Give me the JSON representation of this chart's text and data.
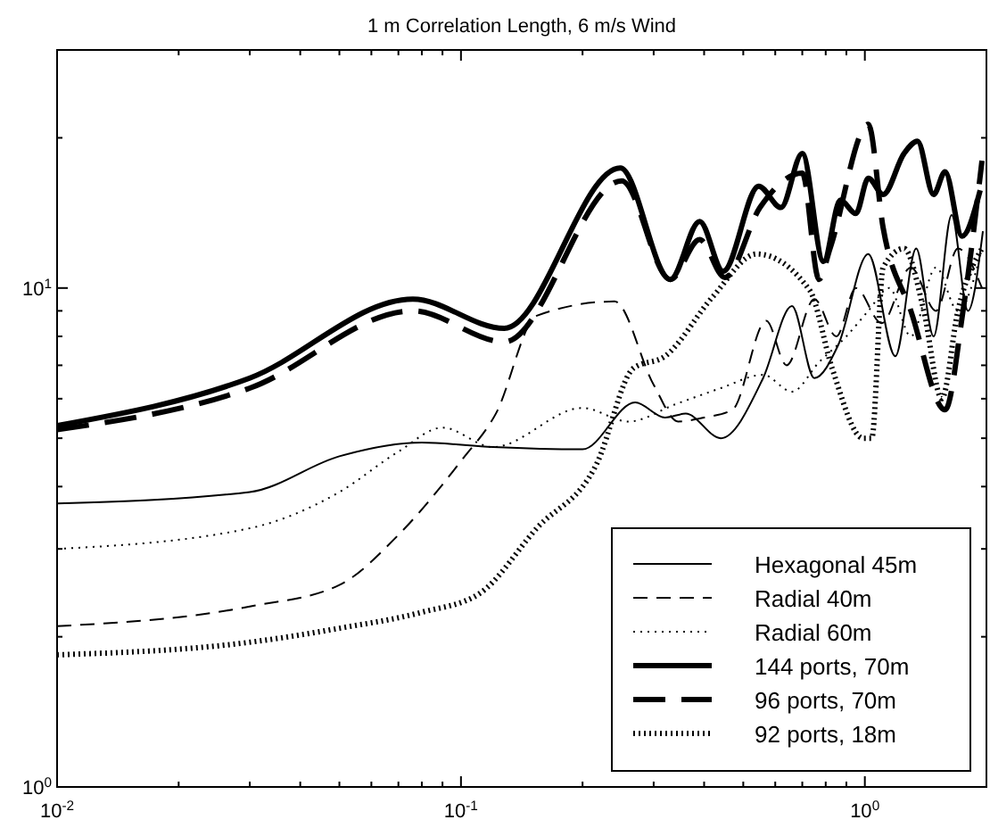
{
  "chart_data": {
    "type": "line",
    "title": "1 m Correlation Length, 6 m/s Wind",
    "log": "xy",
    "grid": false,
    "legend": "bottom right",
    "xlim": [
      0.01,
      2
    ],
    "ylim": [
      1,
      30
    ],
    "xticks": [
      {
        "value": 0.01,
        "label": "10$^{-2}$"
      },
      {
        "value": 0.02,
        "label": null
      },
      {
        "value": 0.03,
        "label": null
      },
      {
        "value": 0.04,
        "label": null
      },
      {
        "value": 0.05,
        "label": null
      },
      {
        "value": 0.06,
        "label": null
      },
      {
        "value": 0.07,
        "label": null
      },
      {
        "value": 0.08,
        "label": null
      },
      {
        "value": 0.09,
        "label": null
      },
      {
        "value": 0.1,
        "label": "10$^{-1}$"
      },
      {
        "value": 0.2,
        "label": null
      },
      {
        "value": 0.3,
        "label": null
      },
      {
        "value": 0.4,
        "label": null
      },
      {
        "value": 0.5,
        "label": null
      },
      {
        "value": 0.6,
        "label": null
      },
      {
        "value": 0.7,
        "label": null
      },
      {
        "value": 0.8,
        "label": null
      },
      {
        "value": 0.9,
        "label": null
      },
      {
        "value": 1,
        "label": "10$^{0}$"
      }
    ],
    "yticks": [
      {
        "value": 1,
        "label": "10$^{0}$"
      },
      {
        "value": 2,
        "label": null
      },
      {
        "value": 3,
        "label": null
      },
      {
        "value": 4,
        "label": null
      },
      {
        "value": 5,
        "label": null
      },
      {
        "value": 6,
        "label": null
      },
      {
        "value": 7,
        "label": null
      },
      {
        "value": 8,
        "label": null
      },
      {
        "value": 9,
        "label": null
      },
      {
        "value": 10,
        "label": "10$^{1}$"
      },
      {
        "value": 20,
        "label": null
      }
    ],
    "series": [
      {
        "name": "Hexagonal 45m",
        "color": "#000000",
        "line_style": "solid",
        "x": [
          0.01,
          0.03,
          0.05,
          0.08,
          0.12,
          0.2,
          0.27,
          0.32,
          0.36,
          0.44,
          0.56,
          0.66,
          0.75,
          0.86,
          1.02,
          1.19,
          1.34,
          1.48,
          1.64,
          1.8,
          1.96
        ],
        "values": [
          3.7,
          3.9,
          4.6,
          4.9,
          4.8,
          4.75,
          5.9,
          5.5,
          5.6,
          5.0,
          6.6,
          9.2,
          6.6,
          7.7,
          11.7,
          7.3,
          12,
          8,
          14,
          9,
          13
        ]
      },
      {
        "name": "Radial 40m",
        "color": "#000000",
        "line_style": "dashed",
        "x": [
          0.01,
          0.03,
          0.05,
          0.07,
          0.1,
          0.122,
          0.154,
          0.24,
          0.3,
          0.345,
          0.4,
          0.47,
          0.57,
          0.64,
          0.75,
          0.85,
          0.95,
          1.1,
          1.3,
          1.5,
          1.7,
          1.95
        ],
        "values": [
          2.1,
          2.3,
          2.54,
          3.2,
          4.5,
          5.6,
          8.8,
          9.4,
          6.4,
          5.4,
          5.5,
          5.7,
          8.6,
          7,
          9.5,
          8,
          10,
          8.5,
          11,
          9,
          12,
          10
        ]
      },
      {
        "name": "Radial 60m",
        "color": "#000000",
        "line_style": "dotted",
        "x": [
          0.01,
          0.03,
          0.05,
          0.07,
          0.09,
          0.12,
          0.2,
          0.26,
          0.34,
          0.44,
          0.56,
          0.66,
          0.77,
          0.9,
          1.02,
          1.15,
          1.3,
          1.5,
          1.7,
          1.95
        ],
        "values": [
          3.0,
          3.3,
          3.9,
          4.7,
          5.25,
          4.8,
          5.75,
          5.4,
          5.85,
          6.3,
          6.7,
          6.2,
          7.1,
          8,
          9,
          10,
          8,
          11,
          9,
          12
        ]
      },
      {
        "name": "144 ports, 70m",
        "color": "#000000",
        "line_style": "solid",
        "x": [
          0.01,
          0.03,
          0.076,
          0.128,
          0.248,
          0.33,
          0.39,
          0.446,
          0.546,
          0.62,
          0.7,
          0.79,
          0.87,
          0.95,
          1.02,
          1.11,
          1.25,
          1.35,
          1.48,
          1.58,
          1.74,
          1.93
        ],
        "values": [
          5.3,
          6.6,
          9.5,
          8.3,
          17.4,
          10.4,
          13.6,
          10.8,
          16,
          14.5,
          18.6,
          11.3,
          15,
          14.1,
          16.6,
          15.4,
          18.6,
          19.7,
          15.4,
          17.1,
          12.7,
          15.7
        ]
      },
      {
        "name": "96 ports, 70m",
        "color": "#000000",
        "line_style": "dashed",
        "x": [
          0.01,
          0.03,
          0.076,
          0.128,
          0.25,
          0.33,
          0.39,
          0.45,
          0.55,
          0.7,
          0.77,
          0.82,
          1.02,
          1.11,
          1.3,
          1.58,
          1.75,
          1.95
        ],
        "values": [
          5.2,
          6.3,
          9.0,
          7.8,
          16.4,
          10.4,
          12.5,
          10.5,
          14.5,
          17,
          10.4,
          12,
          21.3,
          13.2,
          9,
          5.7,
          9,
          18
        ]
      },
      {
        "name": "92 ports, 18m",
        "color": "#000000",
        "line_style": "dotted",
        "x": [
          0.01,
          0.03,
          0.05,
          0.08,
          0.111,
          0.154,
          0.217,
          0.267,
          0.32,
          0.42,
          0.54,
          0.73,
          0.83,
          0.99,
          1.04,
          1.11,
          1.25,
          1.4,
          1.55,
          1.7,
          1.95
        ],
        "values": [
          1.84,
          1.95,
          2.08,
          2.24,
          2.44,
          3.3,
          4.45,
          6.9,
          7.3,
          9.6,
          11.7,
          9.9,
          6.9,
          5.0,
          5.0,
          11,
          12,
          9,
          6,
          9,
          12
        ]
      }
    ]
  }
}
